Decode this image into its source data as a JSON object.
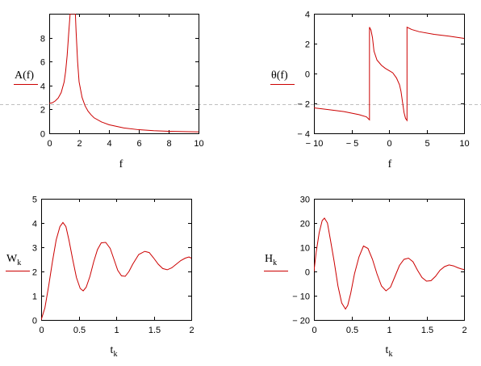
{
  "colors": {
    "series": "#cc0000",
    "axes": "#000000",
    "dashed_line": "#bfbfbf",
    "background": "#ffffff"
  },
  "chart_data": [
    {
      "type": "line",
      "ylabel": "A(f)",
      "xlabel": "f",
      "xlim": [
        0,
        10
      ],
      "ylim": [
        0,
        10
      ],
      "x_ticks": [
        "0",
        "2",
        "4",
        "6",
        "8",
        "10"
      ],
      "y_ticks": [
        "0",
        "2",
        "4",
        "6",
        "8"
      ],
      "series": [
        {
          "x": [
            0,
            0.2,
            0.4,
            0.6,
            0.8,
            1.0,
            1.1,
            1.2,
            1.3,
            1.4,
            1.45,
            1.5,
            1.55,
            1.6,
            1.65,
            1.7,
            1.75,
            1.8,
            1.9,
            2.0,
            2.2,
            2.4,
            2.6,
            2.8,
            3.0,
            3.5,
            4.0,
            5.0,
            6.0,
            7.0,
            8.0,
            9.0,
            10.0
          ],
          "y": [
            2.5,
            2.55,
            2.7,
            2.95,
            3.4,
            4.3,
            5.2,
            6.5,
            8.3,
            10,
            10,
            10,
            10,
            10,
            10,
            10,
            10,
            8.5,
            6.0,
            4.3,
            3.0,
            2.3,
            1.85,
            1.55,
            1.3,
            0.95,
            0.72,
            0.45,
            0.3,
            0.22,
            0.17,
            0.14,
            0.12
          ]
        }
      ]
    },
    {
      "type": "line",
      "ylabel": "θ(f)",
      "xlabel": "f",
      "xlim": [
        -10,
        10
      ],
      "ylim": [
        -4,
        4
      ],
      "x_ticks": [
        "− 10",
        "− 5",
        "0",
        "5",
        "10"
      ],
      "y_ticks": [
        "− 4",
        "− 2",
        "0",
        "2",
        "4"
      ],
      "series": [
        {
          "x": [
            -10,
            -8,
            -6,
            -4,
            -3,
            -2.6,
            -2.6,
            -2.4,
            -2.2,
            -2.0,
            -1.6,
            -1.0,
            -0.5,
            0,
            0.5,
            1.0,
            1.4,
            1.6,
            1.8,
            2.0,
            2.2,
            2.4,
            2.4,
            3,
            4,
            6,
            8,
            10
          ],
          "y": [
            -2.3,
            -2.42,
            -2.55,
            -2.75,
            -2.9,
            -3.1,
            3.1,
            2.9,
            2.4,
            1.5,
            0.9,
            0.55,
            0.35,
            0.2,
            0.05,
            -0.3,
            -0.75,
            -1.2,
            -1.9,
            -2.6,
            -3.0,
            -3.14,
            3.1,
            2.95,
            2.8,
            2.62,
            2.5,
            2.35
          ]
        }
      ],
      "dashed_line_y": -2.0
    },
    {
      "type": "line",
      "ylabel": "W",
      "ylabel_sub": "k",
      "xlabel": "t",
      "xlabel_sub": "k",
      "xlim": [
        0,
        2
      ],
      "ylim": [
        0,
        5
      ],
      "x_ticks": [
        "0",
        "0.5",
        "1",
        "1.5",
        "2"
      ],
      "y_ticks": [
        "0",
        "1",
        "2",
        "3",
        "4",
        "5"
      ],
      "series": [
        {
          "x": [
            0,
            0.05,
            0.1,
            0.15,
            0.2,
            0.25,
            0.29,
            0.33,
            0.37,
            0.42,
            0.47,
            0.52,
            0.56,
            0.6,
            0.65,
            0.7,
            0.75,
            0.8,
            0.86,
            0.92,
            0.97,
            1.02,
            1.07,
            1.12,
            1.17,
            1.22,
            1.3,
            1.38,
            1.44,
            1.5,
            1.56,
            1.62,
            1.68,
            1.74,
            1.8,
            1.86,
            1.92,
            1.97,
            2.0
          ],
          "y": [
            0,
            0.5,
            1.4,
            2.4,
            3.3,
            3.85,
            4.02,
            3.85,
            3.3,
            2.5,
            1.75,
            1.3,
            1.2,
            1.35,
            1.8,
            2.4,
            2.9,
            3.18,
            3.2,
            2.95,
            2.5,
            2.05,
            1.82,
            1.8,
            2.0,
            2.3,
            2.7,
            2.83,
            2.78,
            2.55,
            2.3,
            2.12,
            2.07,
            2.15,
            2.3,
            2.45,
            2.55,
            2.6,
            2.55
          ]
        }
      ]
    },
    {
      "type": "line",
      "ylabel": "H",
      "ylabel_sub": "k",
      "xlabel": "t",
      "xlabel_sub": "k",
      "xlim": [
        0,
        2
      ],
      "ylim": [
        -20,
        30
      ],
      "x_ticks": [
        "0",
        "0.5",
        "1",
        "1.5",
        "2"
      ],
      "y_ticks": [
        "− 20",
        "− 10",
        "0",
        "10",
        "20",
        "30"
      ],
      "series": [
        {
          "x": [
            0,
            0.03,
            0.07,
            0.11,
            0.14,
            0.18,
            0.22,
            0.27,
            0.32,
            0.37,
            0.42,
            0.45,
            0.49,
            0.54,
            0.6,
            0.66,
            0.72,
            0.78,
            0.84,
            0.9,
            0.96,
            1.02,
            1.08,
            1.14,
            1.2,
            1.26,
            1.32,
            1.38,
            1.44,
            1.5,
            1.56,
            1.62,
            1.68,
            1.74,
            1.8,
            1.86,
            1.92,
            1.97,
            2.0
          ],
          "y": [
            0,
            8,
            16,
            21,
            22,
            20,
            13,
            4,
            -6,
            -13,
            -15.5,
            -14,
            -9,
            -1,
            6,
            10.5,
            9.5,
            5,
            -1,
            -6,
            -8,
            -6.5,
            -2,
            2.5,
            5,
            5.5,
            4,
            0.5,
            -2.5,
            -4,
            -3.8,
            -2,
            0.5,
            2,
            2.7,
            2.3,
            1.5,
            1,
            0.8
          ]
        }
      ]
    }
  ]
}
